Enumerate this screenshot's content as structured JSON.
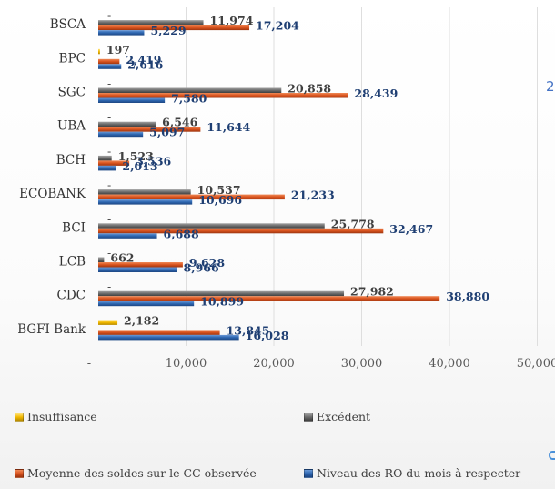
{
  "chart_data": {
    "type": "bar",
    "orientation": "horizontal",
    "categories": [
      "BSCA",
      "BPC",
      "SGC",
      "UBA",
      "BCH",
      "ECOBANK",
      "BCI",
      "LCB",
      "CDC",
      "BGFI Bank"
    ],
    "series": [
      {
        "name": "Insuffisance",
        "color": "#f2b900",
        "values": [
          0,
          197,
          0,
          0,
          0,
          0,
          0,
          0,
          0,
          2182
        ],
        "labels": [
          "-",
          "197",
          "-",
          "-",
          "-",
          "-",
          "-",
          "-",
          "-",
          "2,182"
        ]
      },
      {
        "name": "Excédent",
        "color": "#6b6b6b",
        "values": [
          11974,
          0,
          20858,
          6546,
          1523,
          10537,
          25778,
          662,
          27982,
          0
        ],
        "labels": [
          "11,974",
          "",
          "20,858",
          "6,546",
          "1,523",
          "10,537",
          "25,778",
          "662",
          "27,982",
          ""
        ]
      },
      {
        "name": "Moyenne des soldes sur le CC observée",
        "color": "#d9531e",
        "values": [
          17204,
          2419,
          28439,
          11644,
          3536,
          21233,
          32467,
          9628,
          38880,
          13845
        ],
        "labels": [
          "17,204",
          "2,419",
          "28,439",
          "11,644",
          "3,536",
          "21,233",
          "32,467",
          "9,628",
          "38,880",
          "13,845"
        ]
      },
      {
        "name": "Niveau des RO du mois à respecter",
        "color": "#2e67b1",
        "values": [
          5229,
          2616,
          7580,
          5097,
          2013,
          10696,
          6688,
          8966,
          10899,
          16028
        ],
        "labels": [
          "5,229",
          "2,616",
          "7,580",
          "5,097",
          "2,013",
          "10,696",
          "6,688",
          "8,966",
          "10,899",
          "16,028"
        ]
      }
    ],
    "x_ticks": [
      "-",
      "10,000",
      "20,000",
      "30,000",
      "40,000",
      "50,000"
    ],
    "xlim": [
      0,
      50000
    ],
    "grid": true,
    "legend_position": "bottom",
    "edge_fragment": "2"
  }
}
